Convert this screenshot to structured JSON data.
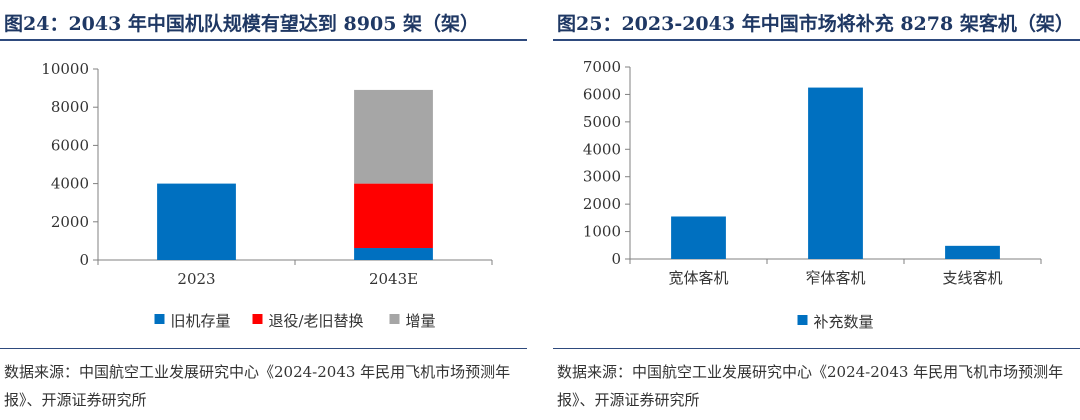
{
  "panels": [
    {
      "title": "图24：2043 年中国机队规模有望达到 8905 架（架）",
      "source": "数据来源：中国航空工业发展研究中心《2024-2043 年民用飞机市场预测年报》、开源证券研究所"
    },
    {
      "title": "图25：2023-2043 年中国市场将补充 8278 架客机（架）",
      "source": "数据来源：中国航空工业发展研究中心《2024-2043 年民用飞机市场预测年报》、开源证券研究所"
    }
  ],
  "chart_data": [
    {
      "type": "bar",
      "stacked": true,
      "title": "",
      "xlabel": "",
      "ylabel": "",
      "categories": [
        "2023",
        "2043E"
      ],
      "series": [
        {
          "name": "旧机存量",
          "values": [
            4000,
            627
          ],
          "color": "#0070c0"
        },
        {
          "name": "退役/老旧替换",
          "values": [
            0,
            3373
          ],
          "color": "#ff0000"
        },
        {
          "name": "增量",
          "values": [
            0,
            4905
          ],
          "color": "#a6a6a6"
        }
      ],
      "ylim": [
        0,
        10000
      ],
      "yticks": [
        0,
        2000,
        4000,
        6000,
        8000,
        10000
      ],
      "grid": false,
      "legend": "bottom"
    },
    {
      "type": "bar",
      "title": "",
      "xlabel": "",
      "ylabel": "",
      "categories": [
        "宽体客机",
        "窄体客机",
        "支线客机"
      ],
      "series": [
        {
          "name": "补充数量",
          "values": [
            1550,
            6250,
            480
          ],
          "color": "#0070c0"
        }
      ],
      "ylim": [
        0,
        7000
      ],
      "yticks": [
        0,
        1000,
        2000,
        3000,
        4000,
        5000,
        6000,
        7000
      ],
      "grid": false,
      "legend": "bottom"
    }
  ]
}
